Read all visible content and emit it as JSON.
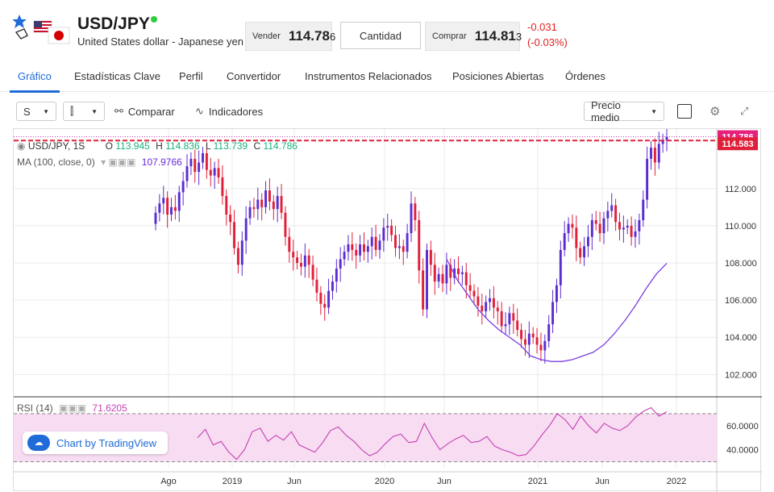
{
  "header": {
    "symbol": "USD/JPY",
    "name": "United States dollar - Japanese yen",
    "sell": {
      "label": "Vender",
      "price_main": "114.78",
      "price_last": "6"
    },
    "quantity_label": "Cantidad",
    "buy": {
      "label": "Comprar",
      "price_main": "114.81",
      "price_last": "3"
    },
    "change": "-0.031",
    "change_pct": "(-0.03%)"
  },
  "tabs": [
    "Gráfico",
    "Estadísticas Clave",
    "Perfil",
    "Convertidor",
    "Instrumentos Relacionados",
    "Posiciones Abiertas",
    "Órdenes"
  ],
  "toolbar": {
    "interval": "S",
    "compare": "Comparar",
    "indicators": "Indicadores",
    "price_type": "Precio medio"
  },
  "legend": {
    "symbol": "USD/JPY, 1S",
    "o_label": "O",
    "o": "113.945",
    "h_label": "H",
    "h": "114.836",
    "l_label": "L",
    "l": "113.739",
    "c_label": "C",
    "c": "114.786",
    "ma_label": "MA (100, close, 0)",
    "ma_value": "107.9766",
    "rsi_label": "RSI (14)",
    "rsi_value": "71.6205"
  },
  "branding": "Chart by TradingView",
  "chart_data": {
    "type": "candlestick",
    "price_axis": {
      "ticks": [
        112,
        110,
        108,
        106,
        104,
        102
      ],
      "tick_labels": [
        "112.000",
        "110.000",
        "108.000",
        "106.000",
        "104.000",
        "102.000"
      ],
      "range": [
        100.8,
        115.2
      ]
    },
    "last_price_label": "114.786",
    "sell_line_label": "114.583",
    "time_axis": [
      "Ago",
      "2019",
      "Jun",
      "2020",
      "Jun",
      "2021",
      "Jun",
      "2022"
    ],
    "rsi_axis": {
      "ticks": [
        60,
        40
      ],
      "tick_labels": [
        "60.0000",
        "40.0000"
      ],
      "bands": [
        70,
        30
      ]
    },
    "series_close": [
      110.7,
      111.2,
      111.5,
      110.6,
      111.0,
      110.8,
      111.8,
      112.4,
      113.2,
      113.6,
      112.9,
      113.4,
      113.9,
      113.0,
      112.7,
      113.1,
      112.6,
      111.6,
      110.6,
      110.2,
      108.8,
      107.9,
      109.2,
      110.4,
      111.0,
      110.9,
      111.4,
      111.0,
      111.9,
      111.3,
      110.9,
      111.6,
      110.7,
      109.4,
      108.6,
      108.3,
      108.0,
      107.8,
      108.4,
      107.9,
      107.1,
      106.4,
      105.8,
      105.6,
      106.5,
      107.0,
      107.7,
      108.2,
      108.6,
      109.0,
      108.7,
      108.4,
      109.0,
      108.6,
      108.9,
      109.4,
      108.7,
      109.2,
      109.9,
      110.0,
      109.5,
      108.8,
      108.9,
      108.6,
      109.6,
      111.2,
      110.3,
      107.6,
      105.5,
      108.7,
      107.9,
      107.0,
      107.4,
      106.9,
      107.9,
      107.2,
      107.7,
      107.4,
      107.5,
      106.8,
      106.5,
      106.2,
      105.7,
      105.4,
      105.9,
      106.1,
      105.6,
      105.4,
      104.6,
      104.7,
      105.3,
      104.9,
      104.4,
      103.9,
      103.6,
      104.2,
      104.0,
      103.6,
      103.3,
      103.8,
      104.7,
      105.9,
      106.8,
      108.7,
      109.6,
      110.1,
      109.9,
      108.8,
      108.3,
      108.9,
      109.4,
      110.3,
      110.1,
      109.6,
      110.4,
      110.8,
      111.1,
      110.2,
      109.8,
      109.9,
      110.0,
      109.4,
      109.7,
      110.3,
      111.4,
      113.6,
      114.2,
      113.4,
      114.4,
      114.6,
      114.786
    ],
    "ma_100": [
      108.2,
      107.1,
      106.3,
      105.5,
      104.9,
      104.4,
      104.0,
      103.6,
      103.0,
      102.8,
      102.7,
      102.7,
      102.8,
      103.0,
      103.2,
      103.6,
      104.2,
      104.9,
      105.7,
      106.6,
      107.4,
      107.98
    ],
    "rsi": [
      50,
      57,
      44,
      47,
      38,
      32,
      40,
      55,
      58,
      47,
      52,
      48,
      55,
      44,
      41,
      38,
      46,
      56,
      59,
      52,
      47,
      40,
      35,
      38,
      45,
      51,
      53,
      46,
      47,
      62,
      50,
      40,
      45,
      49,
      52,
      46,
      47,
      51,
      43,
      40,
      38,
      35,
      36,
      43,
      52,
      60,
      70,
      65,
      57,
      68,
      60,
      54,
      62,
      58,
      56,
      60,
      67,
      72,
      75,
      68,
      71.6
    ]
  }
}
